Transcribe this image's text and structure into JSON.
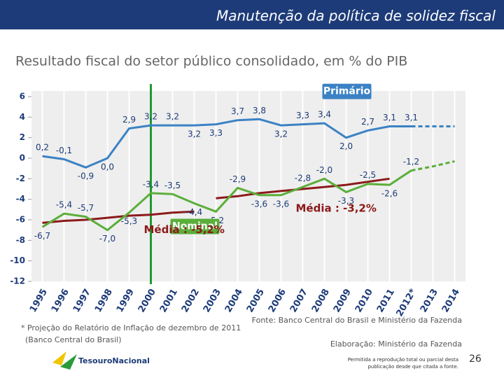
{
  "header": {
    "title": "Manutenção da política de solidez fiscal"
  },
  "chart_data": {
    "type": "line",
    "title": "Resultado fiscal do setor público consolidado, em % do PIB",
    "categories": [
      "1995",
      "1996",
      "1997",
      "1998",
      "1999",
      "2000",
      "2001",
      "2002",
      "2003",
      "2004",
      "2005",
      "2006",
      "2007",
      "2008",
      "2009",
      "2010",
      "2011",
      "2012*",
      "2013",
      "2014"
    ],
    "ylim": [
      -12,
      6
    ],
    "yticks": [
      -12,
      -10,
      -8,
      -6,
      -4,
      -2,
      0,
      2,
      4,
      6
    ],
    "grid": true,
    "vertical_line": {
      "x": "2000",
      "color": "#1f9a2e"
    },
    "series": [
      {
        "name": "Primário",
        "color": "#3b82c4",
        "values": [
          0.2,
          -0.1,
          -0.9,
          0.0,
          2.9,
          3.2,
          3.2,
          3.2,
          3.3,
          3.7,
          3.8,
          3.2,
          3.3,
          3.4,
          2.0,
          2.7,
          3.1,
          3.1,
          null,
          null
        ],
        "value_labels": [
          "0,2",
          "-0,1",
          "-0,9",
          "0,0",
          "2,9",
          "3,2",
          "3,2",
          "3,2",
          "3,3",
          "3,7",
          "3,8",
          "3,2",
          "3,3",
          "3,4",
          "2,0",
          "2,7",
          "3,1",
          "3,1",
          null,
          null
        ],
        "projection": [
          null,
          null,
          null,
          null,
          null,
          null,
          null,
          null,
          null,
          null,
          null,
          null,
          null,
          null,
          null,
          null,
          null,
          3.1,
          3.1,
          3.1
        ]
      },
      {
        "name": "Nominal",
        "color": "#5aae3a",
        "values": [
          -6.7,
          -5.4,
          -5.7,
          -7.0,
          -5.3,
          -3.4,
          -3.5,
          -4.4,
          -5.2,
          -2.9,
          -3.6,
          -3.6,
          -2.8,
          -2.0,
          -3.3,
          -2.5,
          -2.6,
          -1.2,
          null,
          null
        ],
        "value_labels": [
          "-6,7",
          "-5,4",
          "-5,7",
          "-7,0",
          "-5,3",
          "-3,4",
          "-3,5",
          "-4,4",
          "-5,2",
          "-2,9",
          "-3,6",
          "-3,6",
          "-2,8",
          "-2,0",
          "-3,3",
          "-2,5",
          "-2,6",
          "-1,2",
          null,
          null
        ],
        "projection": [
          null,
          null,
          null,
          null,
          null,
          null,
          null,
          null,
          null,
          null,
          null,
          null,
          null,
          null,
          null,
          null,
          null,
          -1.2,
          -0.8,
          -0.3
        ]
      }
    ],
    "averages": [
      {
        "label": "Média : -5,2%",
        "color": "#8b1a1a",
        "values": [
          -6.3,
          -6.1,
          -6.0,
          -5.8,
          -5.6,
          -5.5,
          -5.3,
          -5.2,
          null,
          null,
          null,
          null,
          null,
          null,
          null,
          null,
          null,
          null,
          null,
          null
        ]
      },
      {
        "label": "Média : -3,2%",
        "color": "#8b1a1a",
        "values": [
          null,
          null,
          null,
          null,
          null,
          null,
          null,
          null,
          -3.9,
          -3.7,
          -3.4,
          -3.2,
          -3.0,
          -2.8,
          -2.6,
          -2.3,
          -2.0,
          null,
          null,
          null
        ]
      }
    ]
  },
  "footnote": "* Projeção do Relatório de Inflação de dezembro de 2011",
  "footnote_2": "(Banco Central do Brasil)",
  "source": "Fonte: Banco Central do Brasil e Ministério da Fazenda",
  "credit": "Elaboração: Ministério da Fazenda",
  "logo": "TesouroNacional",
  "notice": "Permitida a reprodução total ou parcial desta",
  "notice_2": "publicação desde que citada a fonte.",
  "page_number": "26"
}
